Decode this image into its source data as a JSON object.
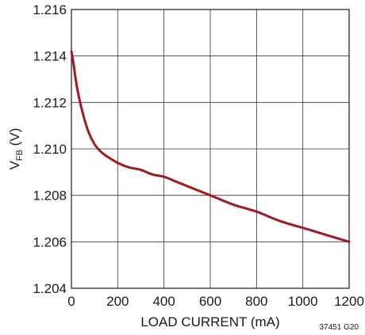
{
  "chart_data": {
    "type": "line",
    "title": "",
    "xlabel": "LOAD CURRENT (mA)",
    "ylabel": {
      "main": "V",
      "sub": "FB",
      "unit": " (V)"
    },
    "xlim": [
      0,
      1200
    ],
    "ylim": [
      1.204,
      1.216
    ],
    "x_ticks": [
      0,
      200,
      400,
      600,
      800,
      1000,
      1200
    ],
    "y_ticks": [
      1.204,
      1.206,
      1.208,
      1.21,
      1.212,
      1.214,
      1.216
    ],
    "x_tick_labels": [
      "0",
      "200",
      "400",
      "600",
      "800",
      "1000",
      "1200"
    ],
    "y_tick_labels": [
      "1.204",
      "1.206",
      "1.208",
      "1.210",
      "1.212",
      "1.214",
      "1.216"
    ],
    "grid": true,
    "series": [
      {
        "color": "#9e1b1f",
        "x": [
          0,
          10,
          25,
          50,
          75,
          100,
          125,
          150,
          200,
          250,
          300,
          350,
          400,
          450,
          500,
          600,
          700,
          800,
          900,
          1000,
          1100,
          1200
        ],
        "y": [
          1.2142,
          1.2136,
          1.2126,
          1.2115,
          1.2107,
          1.2102,
          1.2099,
          1.2097,
          1.2094,
          1.2092,
          1.2091,
          1.2089,
          1.2088,
          1.2086,
          1.2084,
          1.208,
          1.2076,
          1.2073,
          1.2069,
          1.2066,
          1.2063,
          1.206
        ]
      }
    ]
  },
  "figure_id": "37451 G20"
}
